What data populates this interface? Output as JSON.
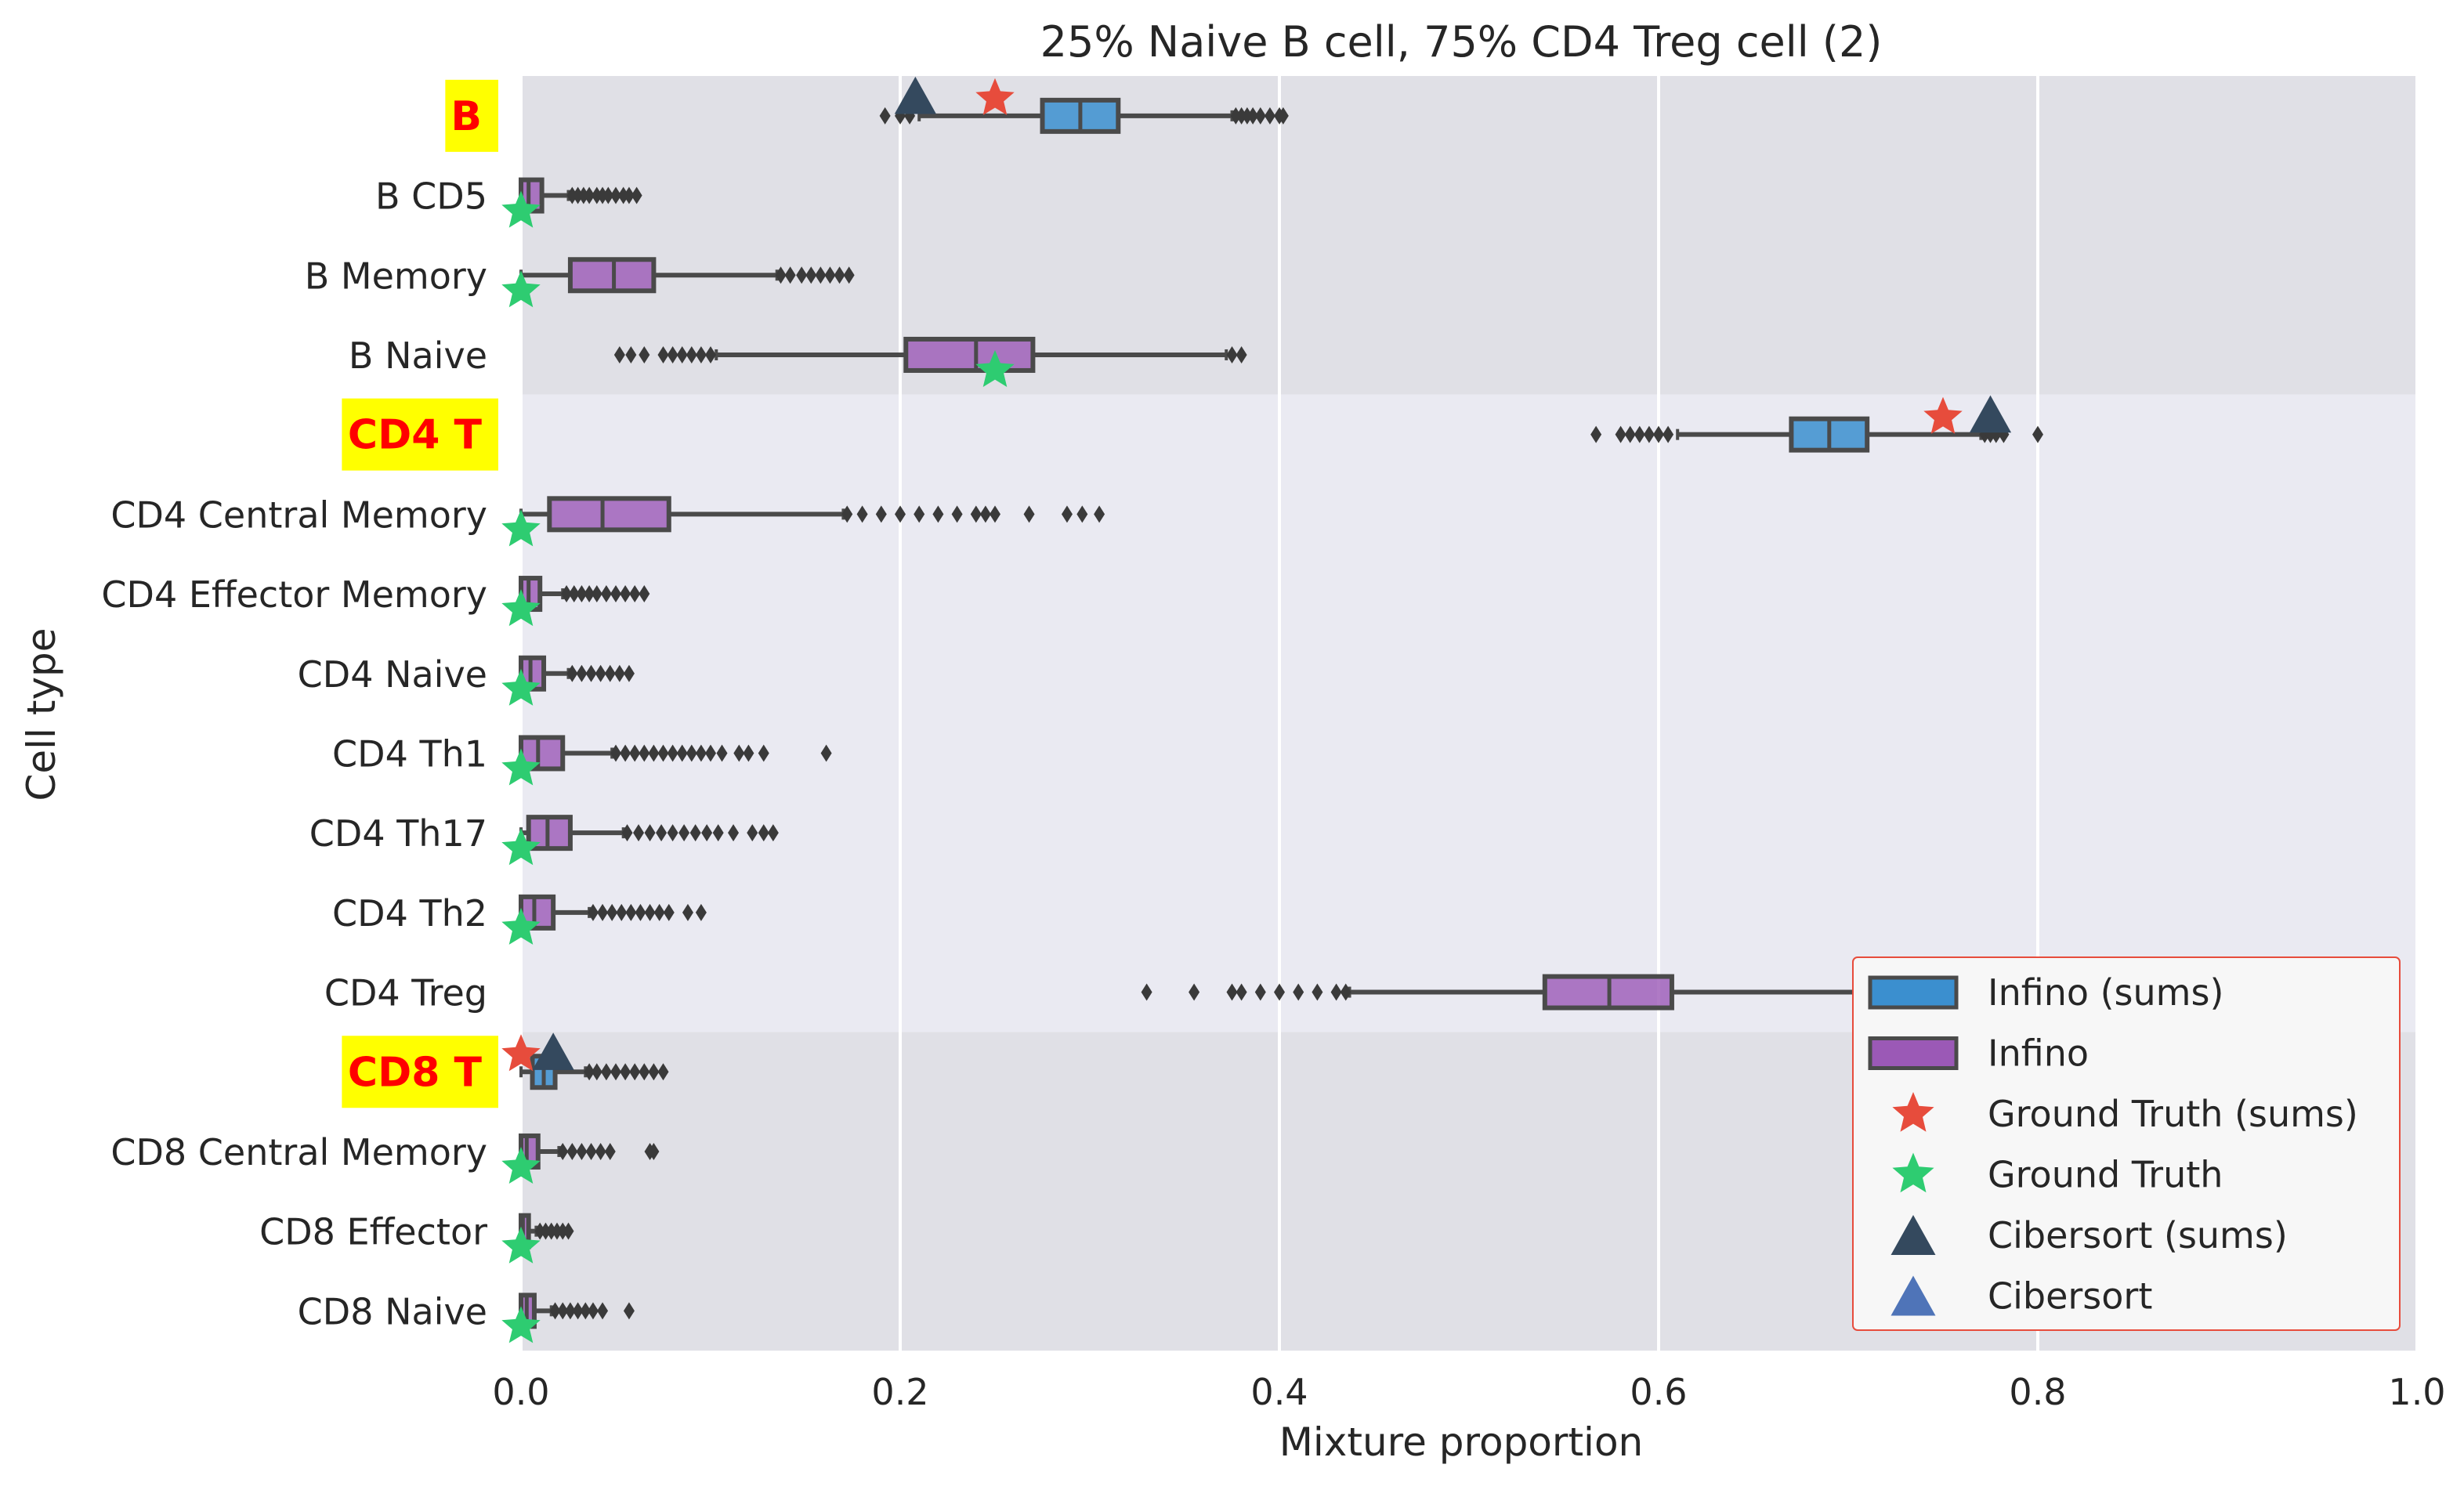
{
  "chart_data": {
    "type": "boxplot",
    "title": "25% Naive B cell, 75% CD4 Treg cell (2)",
    "xlabel": "Mixture proportion",
    "ylabel": "Cell type",
    "xlim": [
      0.0,
      1.0
    ],
    "xticks": [
      "0.0",
      "0.2",
      "0.4",
      "0.6",
      "0.8",
      "1.0"
    ],
    "grid": true,
    "legend_position": "lower-right",
    "colors": {
      "infino_sums": "#3b8fcf",
      "infino": "#9b59b6",
      "ground_truth_sums": "#e74c3c",
      "ground_truth": "#2ecc71",
      "cibersort_sums": "#34495e",
      "cibersort": "#4f74b8",
      "band_dark": "#e0e0e6",
      "band_light": "#eaeaf2",
      "group_label_bg": "#ffff00",
      "group_label_text": "#ff0000"
    },
    "legend": [
      {
        "label": "Infino (sums)",
        "kind": "box",
        "color": "#3b8fcf"
      },
      {
        "label": "Infino",
        "kind": "box",
        "color": "#9b59b6"
      },
      {
        "label": "Ground Truth (sums)",
        "kind": "star",
        "color": "#e74c3c"
      },
      {
        "label": "Ground Truth",
        "kind": "star",
        "color": "#2ecc71"
      },
      {
        "label": "Cibersort (sums)",
        "kind": "triangle",
        "color": "#34495e"
      },
      {
        "label": "Cibersort",
        "kind": "triangle",
        "color": "#4f74b8"
      }
    ],
    "groups": [
      {
        "name": "B",
        "rows": [
          0,
          3
        ],
        "band": "dark"
      },
      {
        "name": "CD4 T",
        "rows": [
          4,
          11
        ],
        "band": "light"
      },
      {
        "name": "CD8 T",
        "rows": [
          12,
          15
        ],
        "band": "dark"
      }
    ],
    "categories": [
      {
        "label": "B",
        "group_header": true,
        "series": "infino_sums",
        "box": {
          "q1": 0.275,
          "median": 0.295,
          "q3": 0.315,
          "whislo": 0.21,
          "whishi": 0.375
        },
        "fliers": [
          0.192,
          0.2,
          0.205,
          0.377,
          0.38,
          0.383,
          0.386,
          0.39,
          0.395,
          0.4,
          0.402
        ],
        "ground_truth": 0.25,
        "cibersort": 0.208
      },
      {
        "label": "B CD5",
        "series": "infino",
        "box": {
          "q1": 0.0,
          "median": 0.004,
          "q3": 0.011,
          "whislo": 0.0,
          "whishi": 0.025
        },
        "fliers": [
          0.027,
          0.03,
          0.033,
          0.036,
          0.04,
          0.043,
          0.046,
          0.05,
          0.054,
          0.057,
          0.061
        ],
        "ground_truth": 0.0,
        "cibersort": null
      },
      {
        "label": "B Memory",
        "series": "infino",
        "box": {
          "q1": 0.026,
          "median": 0.049,
          "q3": 0.07,
          "whislo": 0.0,
          "whishi": 0.135
        },
        "fliers": [
          0.137,
          0.142,
          0.148,
          0.153,
          0.158,
          0.163,
          0.168,
          0.173
        ],
        "ground_truth": 0.0,
        "cibersort": null
      },
      {
        "label": "B Naive",
        "series": "infino",
        "box": {
          "q1": 0.203,
          "median": 0.24,
          "q3": 0.27,
          "whislo": 0.103,
          "whishi": 0.372
        },
        "fliers": [
          0.052,
          0.058,
          0.065,
          0.075,
          0.08,
          0.085,
          0.09,
          0.095,
          0.1,
          0.375,
          0.38
        ],
        "ground_truth": 0.25,
        "cibersort": null
      },
      {
        "label": "CD4 T",
        "group_header": true,
        "series": "infino_sums",
        "box": {
          "q1": 0.67,
          "median": 0.69,
          "q3": 0.71,
          "whislo": 0.61,
          "whishi": 0.77
        },
        "fliers": [
          0.567,
          0.58,
          0.585,
          0.59,
          0.595,
          0.6,
          0.605,
          0.772,
          0.775,
          0.778,
          0.782,
          0.8
        ],
        "ground_truth": 0.75,
        "cibersort": 0.775
      },
      {
        "label": "CD4 Central Memory",
        "series": "infino",
        "box": {
          "q1": 0.015,
          "median": 0.043,
          "q3": 0.078,
          "whislo": 0.0,
          "whishi": 0.17
        },
        "fliers": [
          0.172,
          0.18,
          0.19,
          0.2,
          0.21,
          0.22,
          0.23,
          0.24,
          0.245,
          0.25,
          0.268,
          0.288,
          0.296,
          0.305
        ],
        "ground_truth": 0.0,
        "cibersort": null
      },
      {
        "label": "CD4 Effector Memory",
        "series": "infino",
        "box": {
          "q1": 0.0,
          "median": 0.004,
          "q3": 0.01,
          "whislo": 0.0,
          "whishi": 0.022
        },
        "fliers": [
          0.024,
          0.028,
          0.032,
          0.036,
          0.04,
          0.045,
          0.05,
          0.055,
          0.06,
          0.065
        ],
        "ground_truth": 0.0,
        "cibersort": null
      },
      {
        "label": "CD4 Naive",
        "series": "infino",
        "box": {
          "q1": 0.0,
          "median": 0.005,
          "q3": 0.012,
          "whislo": 0.0,
          "whishi": 0.025
        },
        "fliers": [
          0.027,
          0.032,
          0.037,
          0.042,
          0.047,
          0.052,
          0.057
        ],
        "ground_truth": 0.0,
        "cibersort": null
      },
      {
        "label": "CD4 Th1",
        "series": "infino",
        "box": {
          "q1": 0.0,
          "median": 0.009,
          "q3": 0.022,
          "whislo": 0.0,
          "whishi": 0.048
        },
        "fliers": [
          0.05,
          0.055,
          0.06,
          0.065,
          0.07,
          0.075,
          0.08,
          0.085,
          0.09,
          0.095,
          0.1,
          0.106,
          0.115,
          0.12,
          0.128,
          0.161
        ],
        "ground_truth": 0.0,
        "cibersort": null
      },
      {
        "label": "CD4 Th17",
        "series": "infino",
        "box": {
          "q1": 0.004,
          "median": 0.014,
          "q3": 0.026,
          "whislo": 0.0,
          "whishi": 0.054
        },
        "fliers": [
          0.056,
          0.062,
          0.068,
          0.074,
          0.08,
          0.086,
          0.092,
          0.098,
          0.104,
          0.112,
          0.122,
          0.128,
          0.133
        ],
        "ground_truth": 0.0,
        "cibersort": null
      },
      {
        "label": "CD4 Th2",
        "series": "infino",
        "box": {
          "q1": 0.0,
          "median": 0.007,
          "q3": 0.017,
          "whislo": 0.0,
          "whishi": 0.036
        },
        "fliers": [
          0.038,
          0.043,
          0.048,
          0.053,
          0.058,
          0.063,
          0.068,
          0.073,
          0.078,
          0.088,
          0.095
        ],
        "ground_truth": 0.0,
        "cibersort": null
      },
      {
        "label": "CD4 Treg",
        "series": "infino",
        "box": {
          "q1": 0.54,
          "median": 0.574,
          "q3": 0.607,
          "whislo": 0.437,
          "whishi": 0.71
        },
        "fliers": [
          0.33,
          0.355,
          0.375,
          0.38,
          0.39,
          0.4,
          0.41,
          0.42,
          0.43,
          0.435
        ],
        "ground_truth": 0.75,
        "cibersort": null
      },
      {
        "label": "CD8 T",
        "group_header": true,
        "series": "infino_sums",
        "box": {
          "q1": 0.006,
          "median": 0.012,
          "q3": 0.018,
          "whislo": 0.0,
          "whishi": 0.034
        },
        "fliers": [
          0.036,
          0.04,
          0.045,
          0.05,
          0.055,
          0.06,
          0.065,
          0.07,
          0.075
        ],
        "ground_truth": 0.0,
        "cibersort": 0.017
      },
      {
        "label": "CD8 Central Memory",
        "series": "infino",
        "box": {
          "q1": 0.0,
          "median": 0.003,
          "q3": 0.009,
          "whislo": 0.0,
          "whishi": 0.02
        },
        "fliers": [
          0.022,
          0.027,
          0.032,
          0.037,
          0.042,
          0.047,
          0.068,
          0.07
        ],
        "ground_truth": 0.0,
        "cibersort": null
      },
      {
        "label": "CD8 Effector",
        "series": "infino",
        "box": {
          "q1": 0.0,
          "median": 0.001,
          "q3": 0.004,
          "whislo": 0.0,
          "whishi": 0.008
        },
        "fliers": [
          0.01,
          0.013,
          0.016,
          0.019,
          0.022,
          0.025
        ],
        "ground_truth": 0.0,
        "cibersort": null
      },
      {
        "label": "CD8 Naive",
        "series": "infino",
        "box": {
          "q1": 0.0,
          "median": 0.003,
          "q3": 0.007,
          "whislo": 0.0,
          "whishi": 0.016
        },
        "fliers": [
          0.018,
          0.022,
          0.026,
          0.03,
          0.034,
          0.038,
          0.043,
          0.057
        ],
        "ground_truth": 0.0,
        "cibersort": null
      }
    ]
  }
}
